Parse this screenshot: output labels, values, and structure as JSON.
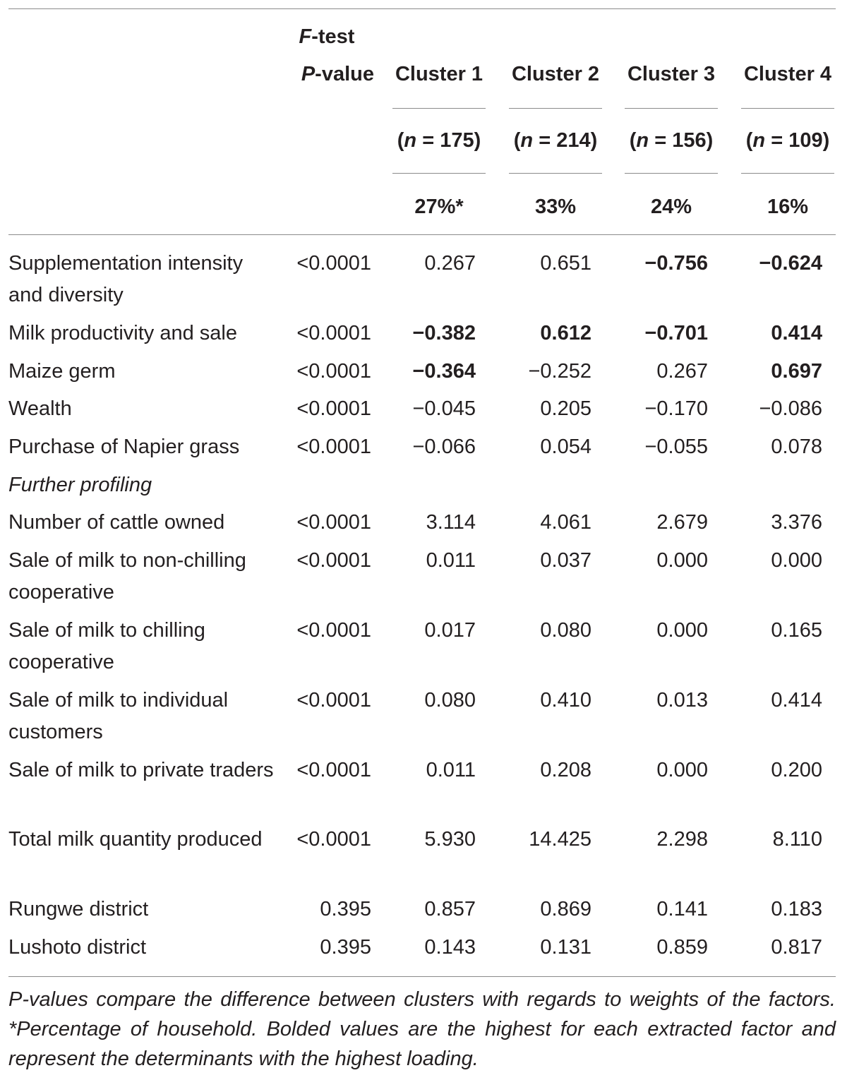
{
  "header": {
    "ftest_line1": "F-test",
    "ftest_line2": "P-value",
    "clusters": [
      {
        "name": "Cluster 1",
        "n": "175",
        "pct": "27%*"
      },
      {
        "name": "Cluster 2",
        "n": "214",
        "pct": "33%"
      },
      {
        "name": "Cluster 3",
        "n": "156",
        "pct": "24%"
      },
      {
        "name": "Cluster 4",
        "n": "109",
        "pct": "16%"
      }
    ]
  },
  "rows": [
    {
      "label": "Supplementation intensity and diversity",
      "p": "<0.0001",
      "values": [
        "0.267",
        "0.651",
        "−0.756",
        "−0.624"
      ],
      "bold": [
        false,
        false,
        true,
        true
      ]
    },
    {
      "label": "Milk productivity and sale",
      "p": "<0.0001",
      "values": [
        "−0.382",
        "0.612",
        "−0.701",
        "0.414"
      ],
      "bold": [
        true,
        true,
        true,
        true
      ]
    },
    {
      "label": "Maize germ",
      "p": "<0.0001",
      "values": [
        "−0.364",
        "−0.252",
        "0.267",
        "0.697"
      ],
      "bold": [
        true,
        false,
        false,
        true
      ]
    },
    {
      "label": "Wealth",
      "p": "<0.0001",
      "values": [
        "−0.045",
        "0.205",
        "−0.170",
        "−0.086"
      ],
      "bold": [
        false,
        false,
        false,
        false
      ]
    },
    {
      "label": "Purchase of Napier grass",
      "p": "<0.0001",
      "values": [
        "−0.066",
        "0.054",
        "−0.055",
        "0.078"
      ],
      "bold": [
        false,
        false,
        false,
        false
      ]
    },
    {
      "label": "Further profiling",
      "section": true
    },
    {
      "label": "Number of cattle owned",
      "p": "<0.0001",
      "values": [
        "3.114",
        "4.061",
        "2.679",
        "3.376"
      ]
    },
    {
      "label": "Sale of milk to non-chilling cooperative",
      "p": "<0.0001",
      "values": [
        "0.011",
        "0.037",
        "0.000",
        "0.000"
      ]
    },
    {
      "label": "Sale of milk to chilling cooperative",
      "p": "<0.0001",
      "values": [
        "0.017",
        "0.080",
        "0.000",
        "0.165"
      ]
    },
    {
      "label": "Sale of milk to individual customers",
      "p": "<0.0001",
      "values": [
        "0.080",
        "0.410",
        "0.013",
        "0.414"
      ]
    },
    {
      "label": "Sale of milk to private traders",
      "p": "<0.0001",
      "values": [
        "0.011",
        "0.208",
        "0.000",
        "0.200"
      ]
    },
    {
      "label": "Total milk quantity produced",
      "p": "<0.0001",
      "values": [
        "5.930",
        "14.425",
        "2.298",
        "8.110"
      ]
    },
    {
      "label": "Rungwe district",
      "p": "0.395",
      "values": [
        "0.857",
        "0.869",
        "0.141",
        "0.183"
      ]
    },
    {
      "label": "Lushoto district",
      "p": "0.395",
      "values": [
        "0.143",
        "0.131",
        "0.859",
        "0.817"
      ]
    }
  ],
  "footnote": "P-values compare the difference between clusters with regards to weights of the factors. *Percentage of household. Bolded values are the highest for each extracted factor and represent the determinants with the highest loading."
}
